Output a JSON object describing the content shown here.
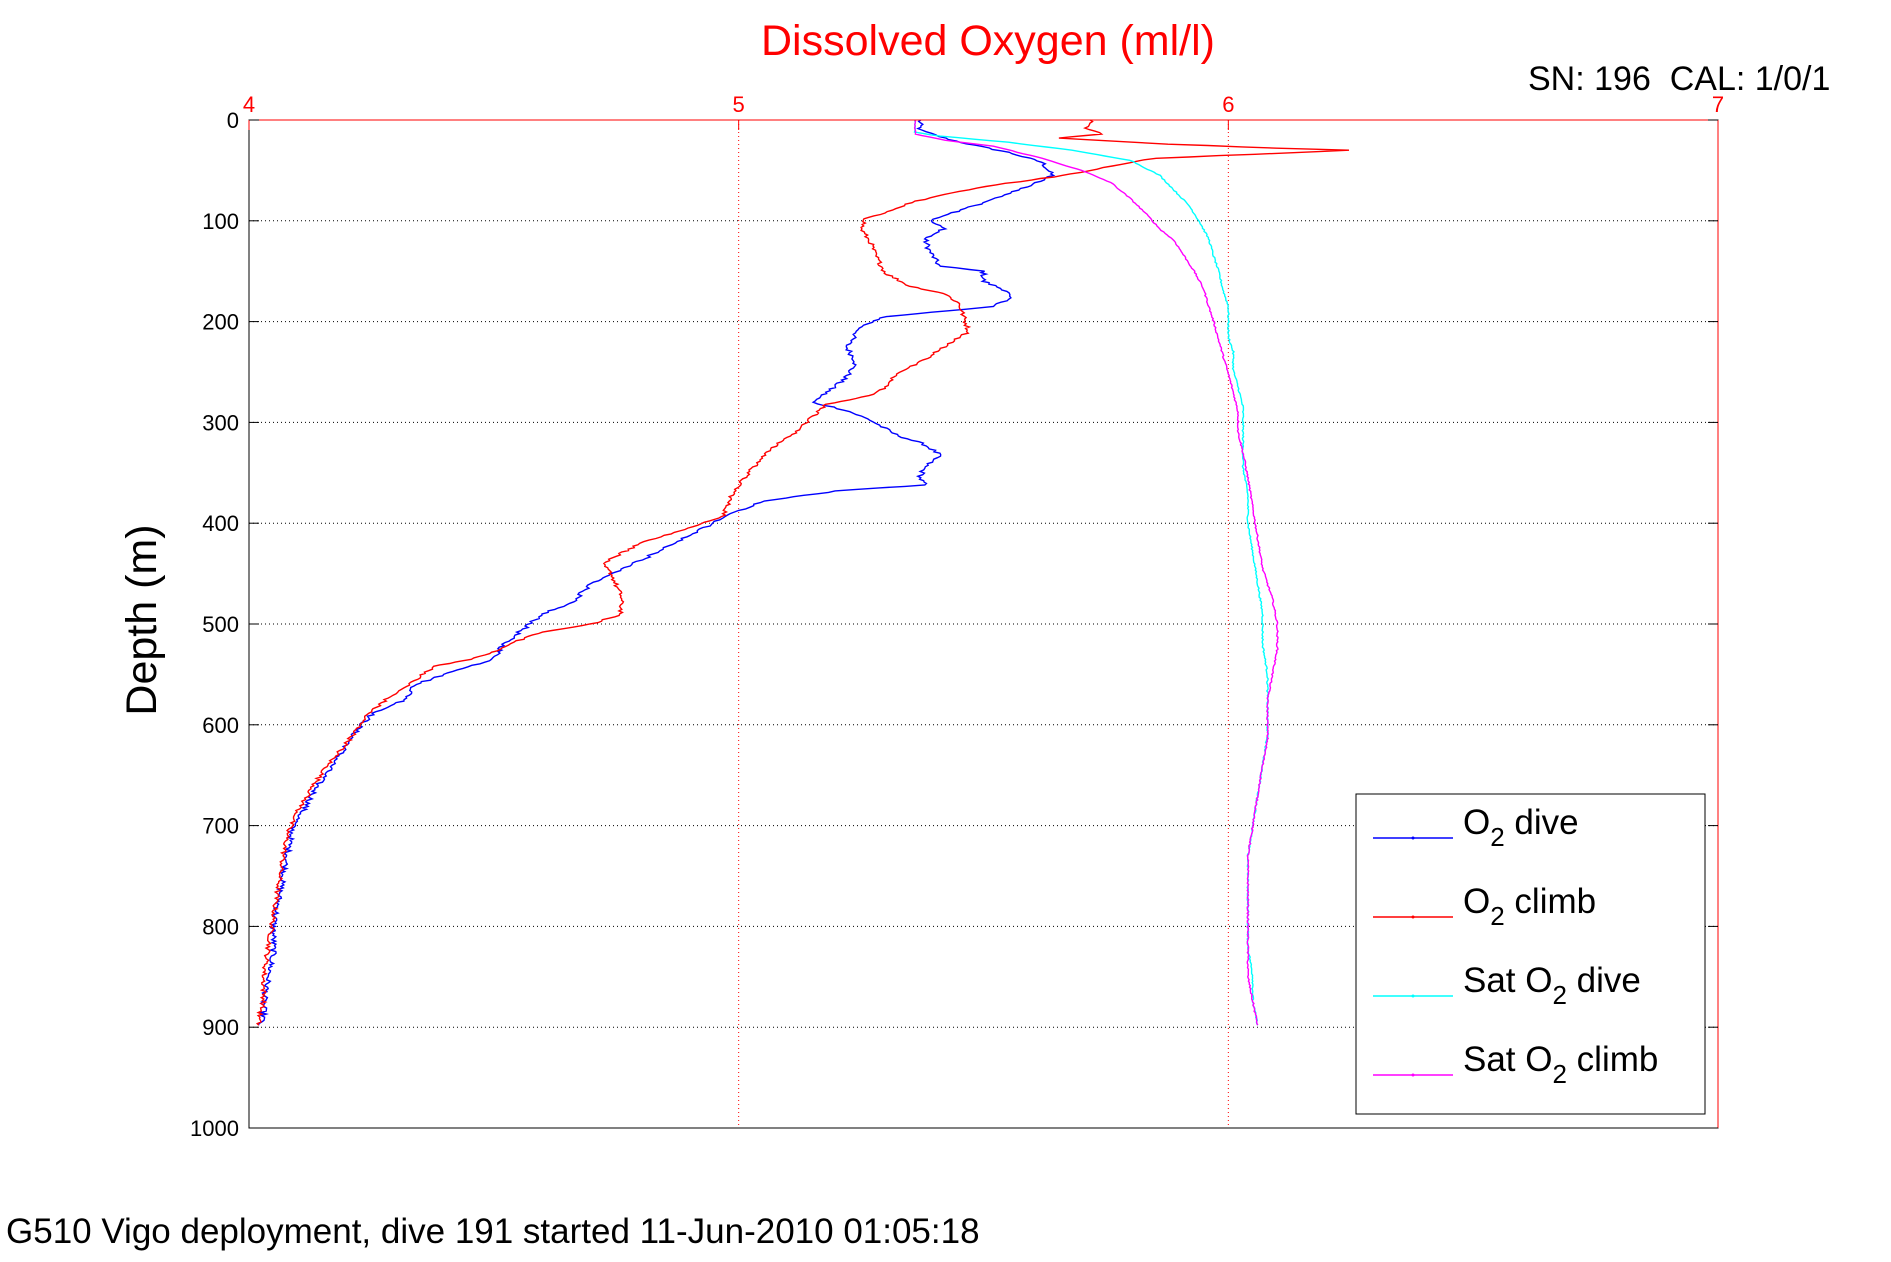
{
  "chart_data": {
    "type": "line",
    "title": "Dissolved Oxygen (ml/l)",
    "calibration_label": "SN: 196  CAL: 1/0/1",
    "footer": "G510 Vigo deployment, dive 191 started 11-Jun-2010 01:05:18",
    "xlabel": "",
    "ylabel": "Depth (m)",
    "xlim": [
      4,
      7
    ],
    "ylim": [
      0,
      1000
    ],
    "y_reversed": true,
    "x_axis_position": "top",
    "x_ticks": [
      4,
      5,
      6,
      7
    ],
    "y_ticks": [
      0,
      100,
      200,
      300,
      400,
      500,
      600,
      700,
      800,
      900,
      1000
    ],
    "grid": true,
    "legend_position": "bottom-right",
    "colors": {
      "title": "#ff0000",
      "x_axis": "#ff0000",
      "y_axis": "#000000",
      "grid": "#7f7f7f"
    },
    "series": [
      {
        "name": "O2 dive",
        "legend": {
          "main": "O",
          "sub": "2",
          "suffix": " dive"
        },
        "color": "#0000ff",
        "jitter": 0.006,
        "points": [
          [
            5.37,
            0
          ],
          [
            5.37,
            10
          ],
          [
            5.42,
            18
          ],
          [
            5.48,
            25
          ],
          [
            5.55,
            32
          ],
          [
            5.62,
            42
          ],
          [
            5.64,
            55
          ],
          [
            5.58,
            68
          ],
          [
            5.5,
            82
          ],
          [
            5.44,
            92
          ],
          [
            5.39,
            100
          ],
          [
            5.42,
            108
          ],
          [
            5.38,
            118
          ],
          [
            5.39,
            130
          ],
          [
            5.41,
            145
          ],
          [
            5.5,
            150
          ],
          [
            5.5,
            160
          ],
          [
            5.55,
            170
          ],
          [
            5.55,
            178
          ],
          [
            5.52,
            185
          ],
          [
            5.3,
            195
          ],
          [
            5.25,
            205
          ],
          [
            5.22,
            225
          ],
          [
            5.24,
            240
          ],
          [
            5.22,
            255
          ],
          [
            5.18,
            270
          ],
          [
            5.15,
            280
          ],
          [
            5.22,
            288
          ],
          [
            5.27,
            298
          ],
          [
            5.32,
            312
          ],
          [
            5.38,
            322
          ],
          [
            5.41,
            332
          ],
          [
            5.38,
            344
          ],
          [
            5.37,
            355
          ],
          [
            5.38,
            362
          ],
          [
            5.2,
            368
          ],
          [
            5.05,
            378
          ],
          [
            4.98,
            392
          ],
          [
            4.9,
            412
          ],
          [
            4.82,
            432
          ],
          [
            4.74,
            450
          ],
          [
            4.7,
            460
          ],
          [
            4.66,
            478
          ],
          [
            4.6,
            490
          ],
          [
            4.56,
            505
          ],
          [
            4.52,
            520
          ],
          [
            4.5,
            535
          ],
          [
            4.4,
            550
          ],
          [
            4.34,
            560
          ],
          [
            4.32,
            575
          ],
          [
            4.25,
            590
          ],
          [
            4.22,
            605
          ],
          [
            4.2,
            620
          ],
          [
            4.17,
            640
          ],
          [
            4.14,
            660
          ],
          [
            4.12,
            678
          ],
          [
            4.09,
            700
          ],
          [
            4.08,
            725
          ],
          [
            4.07,
            750
          ],
          [
            4.06,
            775
          ],
          [
            4.05,
            800
          ],
          [
            4.05,
            825
          ],
          [
            4.04,
            850
          ],
          [
            4.03,
            875
          ],
          [
            4.03,
            890
          ],
          [
            4.02,
            898
          ]
        ]
      },
      {
        "name": "O2 climb",
        "legend": {
          "main": "O",
          "sub": "2",
          "suffix": " climb"
        },
        "color": "#ff0000",
        "jitter": 0.005,
        "points": [
          [
            5.72,
            0
          ],
          [
            5.71,
            8
          ],
          [
            5.74,
            14
          ],
          [
            5.65,
            18
          ],
          [
            5.88,
            24
          ],
          [
            6.1,
            28
          ],
          [
            6.25,
            30
          ],
          [
            6.05,
            34
          ],
          [
            5.85,
            38
          ],
          [
            5.78,
            44
          ],
          [
            5.7,
            52
          ],
          [
            5.62,
            58
          ],
          [
            5.5,
            66
          ],
          [
            5.42,
            74
          ],
          [
            5.35,
            82
          ],
          [
            5.32,
            88
          ],
          [
            5.26,
            98
          ],
          [
            5.25,
            108
          ],
          [
            5.27,
            122
          ],
          [
            5.28,
            135
          ],
          [
            5.3,
            152
          ],
          [
            5.35,
            165
          ],
          [
            5.42,
            172
          ],
          [
            5.45,
            182
          ],
          [
            5.46,
            196
          ],
          [
            5.47,
            210
          ],
          [
            5.42,
            225
          ],
          [
            5.38,
            238
          ],
          [
            5.32,
            252
          ],
          [
            5.31,
            262
          ],
          [
            5.28,
            272
          ],
          [
            5.18,
            282
          ],
          [
            5.15,
            295
          ],
          [
            5.11,
            312
          ],
          [
            5.06,
            328
          ],
          [
            5.04,
            340
          ],
          [
            5.02,
            350
          ],
          [
            5.0,
            362
          ],
          [
            4.98,
            378
          ],
          [
            4.97,
            392
          ],
          [
            4.92,
            402
          ],
          [
            4.85,
            412
          ],
          [
            4.8,
            420
          ],
          [
            4.76,
            430
          ],
          [
            4.72,
            440
          ],
          [
            4.74,
            450
          ],
          [
            4.75,
            462
          ],
          [
            4.76,
            472
          ],
          [
            4.76,
            490
          ],
          [
            4.7,
            500
          ],
          [
            4.6,
            508
          ],
          [
            4.54,
            518
          ],
          [
            4.5,
            528
          ],
          [
            4.45,
            535
          ],
          [
            4.38,
            542
          ],
          [
            4.35,
            552
          ],
          [
            4.32,
            562
          ],
          [
            4.28,
            575
          ],
          [
            4.24,
            590
          ],
          [
            4.22,
            605
          ],
          [
            4.2,
            618
          ],
          [
            4.16,
            640
          ],
          [
            4.13,
            662
          ],
          [
            4.1,
            685
          ],
          [
            4.08,
            705
          ],
          [
            4.07,
            730
          ],
          [
            4.06,
            760
          ],
          [
            4.05,
            790
          ],
          [
            4.04,
            820
          ],
          [
            4.03,
            850
          ],
          [
            4.03,
            875
          ],
          [
            4.02,
            890
          ],
          [
            4.02,
            898
          ]
        ]
      },
      {
        "name": "Sat O2 dive",
        "legend": {
          "main": "Sat O",
          "sub": "2",
          "suffix": " dive"
        },
        "color": "#00ffff",
        "jitter": 0.0015,
        "points": [
          [
            5.36,
            0
          ],
          [
            5.36,
            12
          ],
          [
            5.41,
            16
          ],
          [
            5.55,
            22
          ],
          [
            5.68,
            30
          ],
          [
            5.8,
            40
          ],
          [
            5.86,
            55
          ],
          [
            5.89,
            70
          ],
          [
            5.92,
            85
          ],
          [
            5.94,
            100
          ],
          [
            5.96,
            118
          ],
          [
            5.97,
            135
          ],
          [
            5.98,
            150
          ],
          [
            5.99,
            170
          ],
          [
            6.0,
            185
          ],
          [
            6.0,
            200
          ],
          [
            6.0,
            215
          ],
          [
            6.01,
            230
          ],
          [
            6.01,
            248
          ],
          [
            6.02,
            265
          ],
          [
            6.03,
            285
          ],
          [
            6.03,
            305
          ],
          [
            6.03,
            325
          ],
          [
            6.03,
            345
          ],
          [
            6.04,
            372
          ],
          [
            6.04,
            400
          ],
          [
            6.05,
            430
          ],
          [
            6.06,
            460
          ],
          [
            6.07,
            490
          ],
          [
            6.07,
            520
          ],
          [
            6.08,
            550
          ],
          [
            6.08,
            580
          ],
          [
            6.08,
            610
          ],
          [
            6.07,
            640
          ],
          [
            6.06,
            670
          ],
          [
            6.05,
            700
          ],
          [
            6.04,
            730
          ],
          [
            6.04,
            760
          ],
          [
            6.04,
            790
          ],
          [
            6.04,
            820
          ],
          [
            6.05,
            850
          ],
          [
            6.05,
            875
          ],
          [
            6.06,
            898
          ]
        ]
      },
      {
        "name": "Sat O2 climb",
        "legend": {
          "main": "Sat O",
          "sub": "2",
          "suffix": " climb"
        },
        "color": "#ff00ff",
        "jitter": 0.0015,
        "points": [
          [
            5.36,
            0
          ],
          [
            5.36,
            14
          ],
          [
            5.42,
            20
          ],
          [
            5.52,
            26
          ],
          [
            5.62,
            38
          ],
          [
            5.7,
            50
          ],
          [
            5.76,
            62
          ],
          [
            5.8,
            78
          ],
          [
            5.83,
            92
          ],
          [
            5.86,
            108
          ],
          [
            5.89,
            120
          ],
          [
            5.91,
            135
          ],
          [
            5.93,
            150
          ],
          [
            5.95,
            168
          ],
          [
            5.96,
            185
          ],
          [
            5.97,
            200
          ],
          [
            5.98,
            218
          ],
          [
            5.99,
            235
          ],
          [
            6.0,
            252
          ],
          [
            6.01,
            270
          ],
          [
            6.02,
            290
          ],
          [
            6.02,
            310
          ],
          [
            6.03,
            330
          ],
          [
            6.04,
            355
          ],
          [
            6.05,
            385
          ],
          [
            6.06,
            415
          ],
          [
            6.07,
            445
          ],
          [
            6.09,
            475
          ],
          [
            6.1,
            500
          ],
          [
            6.1,
            525
          ],
          [
            6.09,
            550
          ],
          [
            6.08,
            575
          ],
          [
            6.08,
            600
          ],
          [
            6.08,
            615
          ],
          [
            6.07,
            640
          ],
          [
            6.06,
            670
          ],
          [
            6.05,
            700
          ],
          [
            6.04,
            730
          ],
          [
            6.04,
            760
          ],
          [
            6.04,
            790
          ],
          [
            6.04,
            820
          ],
          [
            6.04,
            850
          ],
          [
            6.05,
            875
          ],
          [
            6.06,
            898
          ]
        ]
      }
    ]
  }
}
